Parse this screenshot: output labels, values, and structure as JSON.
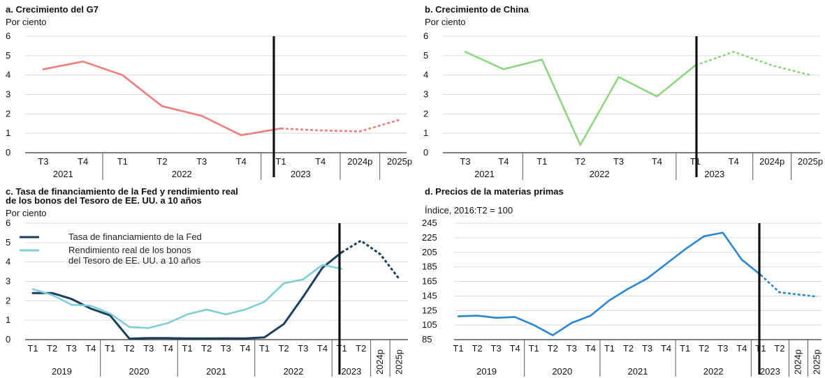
{
  "chart_data": [
    {
      "id": "a",
      "type": "line",
      "title": "a. Crecimiento del G7",
      "ylabel": "Por ciento",
      "ylim": [
        0,
        6
      ],
      "yticks": [
        "0",
        "1",
        "2",
        "3",
        "4",
        "5",
        "6"
      ],
      "grid": true,
      "categories": [
        "T3",
        "T4",
        "T1",
        "T2",
        "T3",
        "T4",
        "T1",
        "T4",
        "2024p",
        "2025p"
      ],
      "groups": [
        {
          "label": "2021",
          "from": 0,
          "to": 1
        },
        {
          "label": "2022",
          "from": 2,
          "to": 5
        },
        {
          "label": "2023",
          "from": 6,
          "to": 7
        }
      ],
      "forecast_start": 6,
      "series": [
        {
          "color": "#ee7d7d",
          "values": [
            4.3,
            4.7,
            4.0,
            2.4,
            1.9,
            0.9,
            1.25,
            1.15,
            1.1,
            1.7
          ]
        }
      ]
    },
    {
      "id": "b",
      "type": "line",
      "title": "b. Crecimiento de China",
      "ylabel": "Por ciento",
      "ylim": [
        0,
        6
      ],
      "yticks": [
        "0",
        "1",
        "2",
        "3",
        "4",
        "5",
        "6"
      ],
      "grid": true,
      "categories": [
        "T3",
        "T4",
        "T1",
        "T2",
        "T3",
        "T4",
        "T1",
        "T4",
        "2024p",
        "2025p"
      ],
      "groups": [
        {
          "label": "2021",
          "from": 0,
          "to": 1
        },
        {
          "label": "2022",
          "from": 2,
          "to": 5
        },
        {
          "label": "2023",
          "from": 6,
          "to": 7
        }
      ],
      "forecast_start": 6,
      "series": [
        {
          "color": "#8fd47f",
          "values": [
            5.2,
            4.3,
            4.8,
            0.4,
            3.9,
            2.9,
            4.5,
            5.2,
            4.5,
            4.0
          ]
        }
      ]
    },
    {
      "id": "c",
      "type": "line",
      "title": "c. Tasa de financiamiento de la Fed y rendimiento real\nde los bonos del Tesoro de EE. UU. a 10 años",
      "ylabel": "Por ciento",
      "ylim": [
        0,
        6
      ],
      "yticks": [
        "0",
        "1",
        "2",
        "3",
        "4",
        "5",
        "6"
      ],
      "grid": true,
      "legend": "top-left",
      "categories": [
        "T1",
        "T2",
        "T3",
        "T4",
        "T1",
        "T2",
        "T3",
        "T4",
        "T1",
        "T2",
        "T3",
        "T4",
        "T1",
        "T2",
        "T3",
        "T4",
        "T1",
        "T2",
        "2024p",
        "2025p"
      ],
      "groups": [
        {
          "label": "2019",
          "from": 0,
          "to": 3
        },
        {
          "label": "2020",
          "from": 4,
          "to": 7
        },
        {
          "label": "2021",
          "from": 8,
          "to": 11
        },
        {
          "label": "2022",
          "from": 12,
          "to": 15
        },
        {
          "label": "2023",
          "from": 16,
          "to": 17
        }
      ],
      "forecast_start": 16,
      "series": [
        {
          "name": "Tasa de financiamiento de la Fed",
          "color": "#1a3f5e",
          "values": [
            2.4,
            2.4,
            2.1,
            1.6,
            1.25,
            0.05,
            0.08,
            0.08,
            0.06,
            0.06,
            0.07,
            0.06,
            0.12,
            0.8,
            2.2,
            3.7,
            4.5,
            5.1,
            4.4,
            3.1
          ]
        },
        {
          "name": "Rendimiento real de los bonos\ndel Tesoro de EE. UU. a 10 años",
          "color": "#7fcdd6",
          "values": [
            2.6,
            2.3,
            1.8,
            1.75,
            1.35,
            0.65,
            0.6,
            0.85,
            1.3,
            1.55,
            1.3,
            1.55,
            1.95,
            2.9,
            3.1,
            3.85,
            3.65,
            null,
            null,
            null
          ]
        }
      ]
    },
    {
      "id": "d",
      "type": "line",
      "title": "d. Precios de la materias primas",
      "ylabel": "Índice, 2016:T2 = 100",
      "ylim": [
        85,
        245
      ],
      "yticks": [
        "85",
        "105",
        "125",
        "145",
        "165",
        "185",
        "205",
        "225",
        "245"
      ],
      "grid": true,
      "categories": [
        "T1",
        "T2",
        "T3",
        "T4",
        "T1",
        "T2",
        "T3",
        "T4",
        "T1",
        "T2",
        "T3",
        "T4",
        "T1",
        "T2",
        "T3",
        "T4",
        "T1",
        "T2",
        "2024p",
        "2025p"
      ],
      "groups": [
        {
          "label": "2019",
          "from": 0,
          "to": 3
        },
        {
          "label": "2020",
          "from": 4,
          "to": 7
        },
        {
          "label": "2021",
          "from": 8,
          "to": 11
        },
        {
          "label": "2022",
          "from": 12,
          "to": 15
        },
        {
          "label": "2023",
          "from": 16,
          "to": 17
        }
      ],
      "forecast_start": 16,
      "series": [
        {
          "color": "#2a85d0",
          "values": [
            117,
            118,
            115,
            116,
            105,
            91,
            108,
            118,
            139,
            155,
            169,
            189,
            209,
            227,
            232,
            195,
            174,
            150,
            147,
            144
          ]
        }
      ]
    }
  ]
}
